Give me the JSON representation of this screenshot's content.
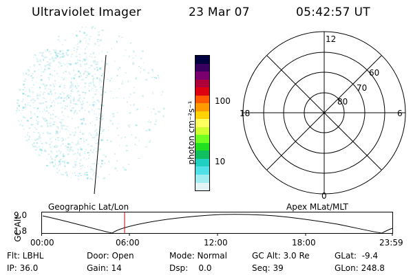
{
  "header": {
    "title": "Ultraviolet Imager",
    "date": "23 Mar 07",
    "time": "05:42:57 UT"
  },
  "colorbar": {
    "unit_label": "photon cm⁻²s⁻¹",
    "ticks": [
      "100",
      "10"
    ],
    "colors": [
      "#000040",
      "#3a0060",
      "#7a0070",
      "#b0003a",
      "#dd0010",
      "#ff5a00",
      "#ff9a00",
      "#ffd200",
      "#ffff60",
      "#d0ff30",
      "#70ff20",
      "#20e020",
      "#10c060",
      "#20d0c0",
      "#50e0e8",
      "#a0ecf0",
      "#e4f4f6"
    ]
  },
  "polar": {
    "mlt_labels": [
      "12",
      "18",
      "6",
      "0"
    ],
    "lat_labels": [
      "60",
      "70",
      "80"
    ]
  },
  "orbit": {
    "left_label": "Geographic Lat/Lon",
    "right_label": "Apex MLat/MLT",
    "y_axis_label": "GC Alt",
    "y_ticks": [
      "9.0",
      "1.8"
    ],
    "x_ticks": [
      "00:00",
      "06:00",
      "12:00",
      "18:00",
      "23:59"
    ],
    "marker_color": "#cc0000"
  },
  "info": {
    "flt": "Flt: LBHL",
    "ip": "IP: 36.0",
    "door": "Door: Open",
    "gain": "Gain: 14",
    "mode": "Mode: Normal",
    "dsp": "Dsp:    0.0",
    "gc_alt": "GC Alt: 3.0 Re",
    "seq": "Seq: 39",
    "glat": "GLat:  -9.4",
    "glon": "GLon: 248.8"
  }
}
